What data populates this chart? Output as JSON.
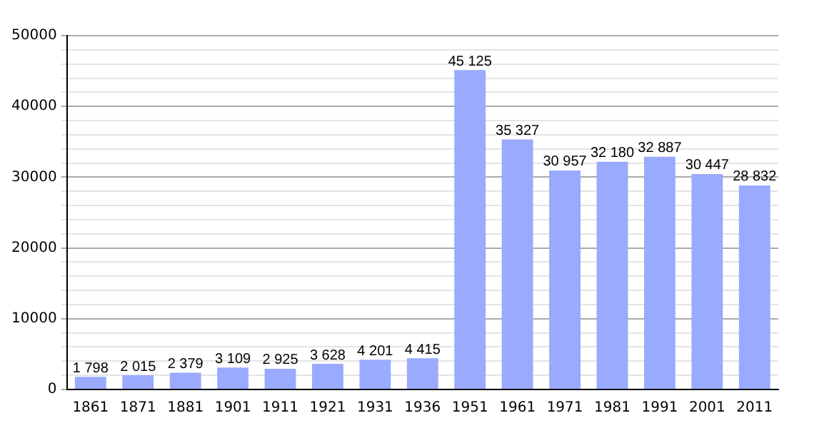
{
  "chart_data": {
    "type": "bar",
    "categories": [
      "1861",
      "1871",
      "1881",
      "1901",
      "1911",
      "1921",
      "1931",
      "1936",
      "1951",
      "1961",
      "1971",
      "1981",
      "1991",
      "2001",
      "2011"
    ],
    "values": [
      1798,
      2015,
      2379,
      3109,
      2925,
      3628,
      4201,
      4415,
      45125,
      35327,
      30957,
      32180,
      32887,
      30447,
      28832
    ],
    "value_labels": [
      "1 798",
      "2 015",
      "2 379",
      "3 109",
      "2 925",
      "3 628",
      "4 201",
      "4 415",
      "45 125",
      "35 327",
      "30 957",
      "32 180",
      "32 887",
      "30 447",
      "28 832"
    ],
    "color": "#99aaff",
    "ylim": [
      0,
      50000
    ],
    "yticks": [
      0,
      {
        "value": 2000,
        "label": null
      },
      {
        "value": 4000,
        "label": null
      },
      {
        "value": 6000,
        "label": null
      },
      {
        "value": 8000,
        "label": null
      },
      10000,
      {
        "value": 12000,
        "label": null
      },
      {
        "value": 14000,
        "label": null
      },
      {
        "value": 16000,
        "label": null
      },
      {
        "value": 18000,
        "label": null
      },
      20000,
      {
        "value": 22000,
        "label": null
      },
      {
        "value": 24000,
        "label": null
      },
      {
        "value": 26000,
        "label": null
      },
      {
        "value": 28000,
        "label": null
      },
      30000,
      {
        "value": 32000,
        "label": null
      },
      {
        "value": 34000,
        "label": null
      },
      {
        "value": 36000,
        "label": null
      },
      {
        "value": 38000,
        "label": null
      },
      40000,
      {
        "value": 42000,
        "label": null
      },
      {
        "value": 44000,
        "label": null
      },
      {
        "value": 46000,
        "label": null
      },
      {
        "value": 48000,
        "label": null
      },
      50000
    ],
    "grid": "y",
    "legend": false
  }
}
